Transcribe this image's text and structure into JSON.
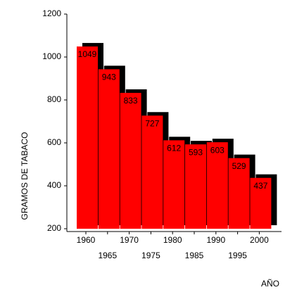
{
  "chart_data": {
    "type": "bar",
    "x_label": "AÑO",
    "y_label": "GRAMOS DE TABACO",
    "categories": [
      "1960",
      "1965",
      "1970",
      "1975",
      "1980",
      "1985",
      "1990",
      "1995",
      "2000"
    ],
    "values": [
      1049,
      943,
      833,
      727,
      612,
      593,
      603,
      529,
      437
    ],
    "color": "#ff0000",
    "shadow_color": "#000000",
    "ylim": [
      200,
      1200
    ],
    "yticks": [
      200,
      400,
      600,
      800,
      1000,
      1200
    ]
  }
}
